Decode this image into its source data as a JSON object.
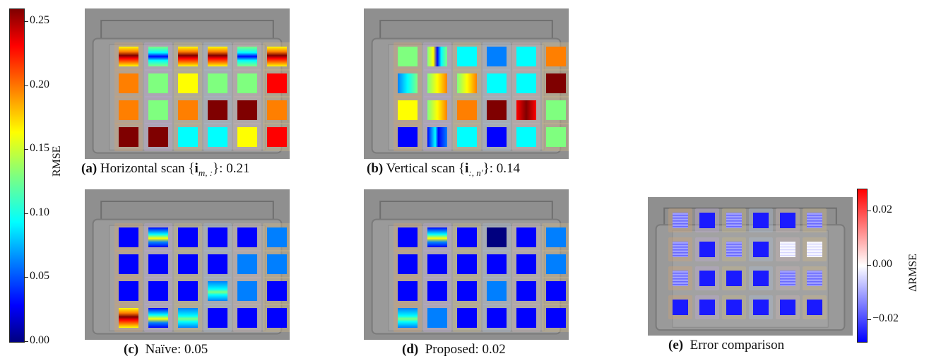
{
  "colorbar_left": {
    "label": "RMSE",
    "ticks": [
      "0.00",
      "0.05",
      "0.10",
      "0.15",
      "0.20",
      "0.25"
    ],
    "tick_values": [
      0.0,
      0.05,
      0.1,
      0.15,
      0.2,
      0.25
    ],
    "range": [
      0.0,
      0.26
    ],
    "colormap": "jet"
  },
  "colorbar_right": {
    "label": "ΔRMSE",
    "ticks": [
      "0.02",
      "0.00",
      "−0.02"
    ],
    "tick_values": [
      0.02,
      0.0,
      -0.02
    ],
    "range": [
      -0.028,
      0.028
    ],
    "colormap": "bwr"
  },
  "panels": {
    "a": {
      "tag": "(a)",
      "text_pre": "Horizontal scan {",
      "sym": "i",
      "sub": "m, :",
      "text_post": "}: 0.21"
    },
    "b": {
      "tag": "(b)",
      "text_pre": "Vertical scan {",
      "sym": "i",
      "sub": ":, n′",
      "text_post": "}: 0.14"
    },
    "c": {
      "tag": "(c)",
      "text": "Naïve: 0.05"
    },
    "d": {
      "tag": "(d)",
      "text": "Proposed: 0.02"
    },
    "e": {
      "tag": "(e)",
      "text": "Error comparison"
    }
  },
  "colors": {
    "jet": [
      "#00007f",
      "#0000ff",
      "#007fff",
      "#00ffff",
      "#7fff7f",
      "#ffff00",
      "#ff7f00",
      "#ff0000",
      "#7f0000"
    ],
    "bwr": [
      "#0000ff",
      "#ffffff",
      "#ff0000"
    ],
    "board": "#8f8f8f"
  }
}
